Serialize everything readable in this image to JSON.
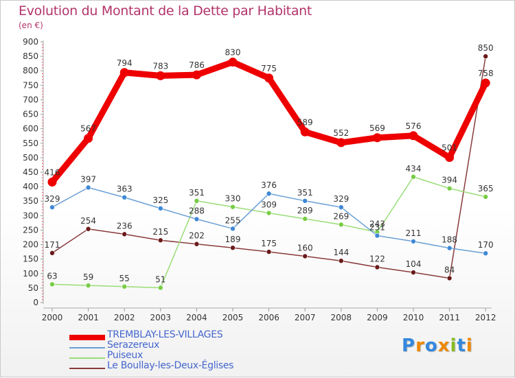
{
  "chart_data": {
    "type": "line",
    "title": "Evolution du Montant de la Dette par Habitant",
    "subtitle": "(en €)",
    "x": [
      "2000",
      "2001",
      "2002",
      "2003",
      "2004",
      "2005",
      "2006",
      "2007",
      "2008",
      "2009",
      "2010",
      "2011",
      "2012"
    ],
    "ylim": [
      0,
      900
    ],
    "yticks": [
      0,
      50,
      100,
      150,
      200,
      250,
      300,
      350,
      400,
      450,
      500,
      550,
      600,
      650,
      700,
      750,
      800,
      850,
      900
    ],
    "grid": false,
    "legend_placement": "bottom-left",
    "series": [
      {
        "name": "TREMBLAY-LES-VILLAGES",
        "color": "#ee0000",
        "marker": "#ee0000",
        "values": [
          416,
          567,
          794,
          783,
          786,
          830,
          775,
          589,
          552,
          569,
          576,
          501,
          758
        ],
        "label_values": [
          "416",
          "567",
          "794",
          "783",
          "786",
          "830",
          "775",
          "589",
          "552",
          "569",
          "576",
          "501",
          "758"
        ]
      },
      {
        "name": "Serazereux",
        "color": "#6a9fd4",
        "marker": "#3f88d6",
        "values": [
          329,
          397,
          363,
          325,
          288,
          255,
          376,
          351,
          329,
          231,
          211,
          188,
          170
        ],
        "label_values": [
          "329",
          "397",
          "363",
          "325",
          "288",
          "255",
          "376",
          "351",
          "329",
          "231",
          "211",
          "188",
          "170"
        ]
      },
      {
        "name": "Puiseux",
        "color": "#99dd77",
        "marker": "#77cc44",
        "values": [
          63,
          59,
          55,
          51,
          351,
          330,
          309,
          289,
          269,
          243,
          434,
          394,
          365
        ],
        "label_values": [
          "63",
          "59",
          "55",
          "51",
          "351",
          "330",
          "309",
          "289",
          "269",
          "243",
          "434",
          "394",
          "365"
        ]
      },
      {
        "name": "Le Boullay-les-Deux-Églises",
        "color": "#8a3a3a",
        "marker": "#6b1a1a",
        "values": [
          171,
          254,
          236,
          215,
          202,
          189,
          175,
          160,
          144,
          122,
          104,
          84,
          850
        ],
        "label_values": [
          "171",
          "254",
          "236",
          "215",
          "202",
          "189",
          "175",
          "160",
          "144",
          "122",
          "104",
          "84",
          "850"
        ]
      }
    ]
  },
  "legend_label_color": "#4466cc",
  "logo": {
    "text": "Proxiti",
    "letters": [
      "P",
      "r",
      "o",
      "x",
      "i",
      "t",
      "i"
    ],
    "colors": [
      "#3388dd",
      "#ee8800",
      "#3388dd",
      "#ee8800",
      "#88bb22",
      "#3388dd",
      "#ee8800"
    ]
  }
}
